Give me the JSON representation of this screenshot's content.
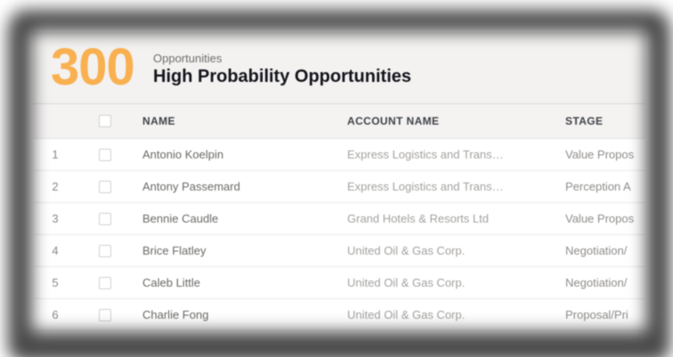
{
  "widget": {
    "count": "300",
    "object_label": "Opportunities",
    "title": "High Probability Opportunities"
  },
  "table": {
    "columns": [
      "NAME",
      "ACCOUNT NAME",
      "STAGE"
    ],
    "rows": [
      {
        "num": "1",
        "name": "Antonio Koelpin",
        "account": "Express Logistics and Trans…",
        "stage": "Value Propos"
      },
      {
        "num": "2",
        "name": "Antony Passemard",
        "account": "Express Logistics and Trans…",
        "stage": "Perception A"
      },
      {
        "num": "3",
        "name": "Bennie Caudle",
        "account": "Grand Hotels & Resorts Ltd",
        "stage": "Value Propos"
      },
      {
        "num": "4",
        "name": "Brice Flatley",
        "account": "United Oil & Gas Corp.",
        "stage": "Negotiation/"
      },
      {
        "num": "5",
        "name": "Caleb Little",
        "account": "United Oil & Gas Corp.",
        "stage": "Negotiation/"
      },
      {
        "num": "6",
        "name": "Charlie Fong",
        "account": "United Oil & Gas Corp.",
        "stage": "Proposal/Pri"
      }
    ]
  },
  "colors": {
    "accent_orange": "#f9b050",
    "header_bg": "#f3f2f1",
    "frame_gray": "#4a4a4a"
  }
}
